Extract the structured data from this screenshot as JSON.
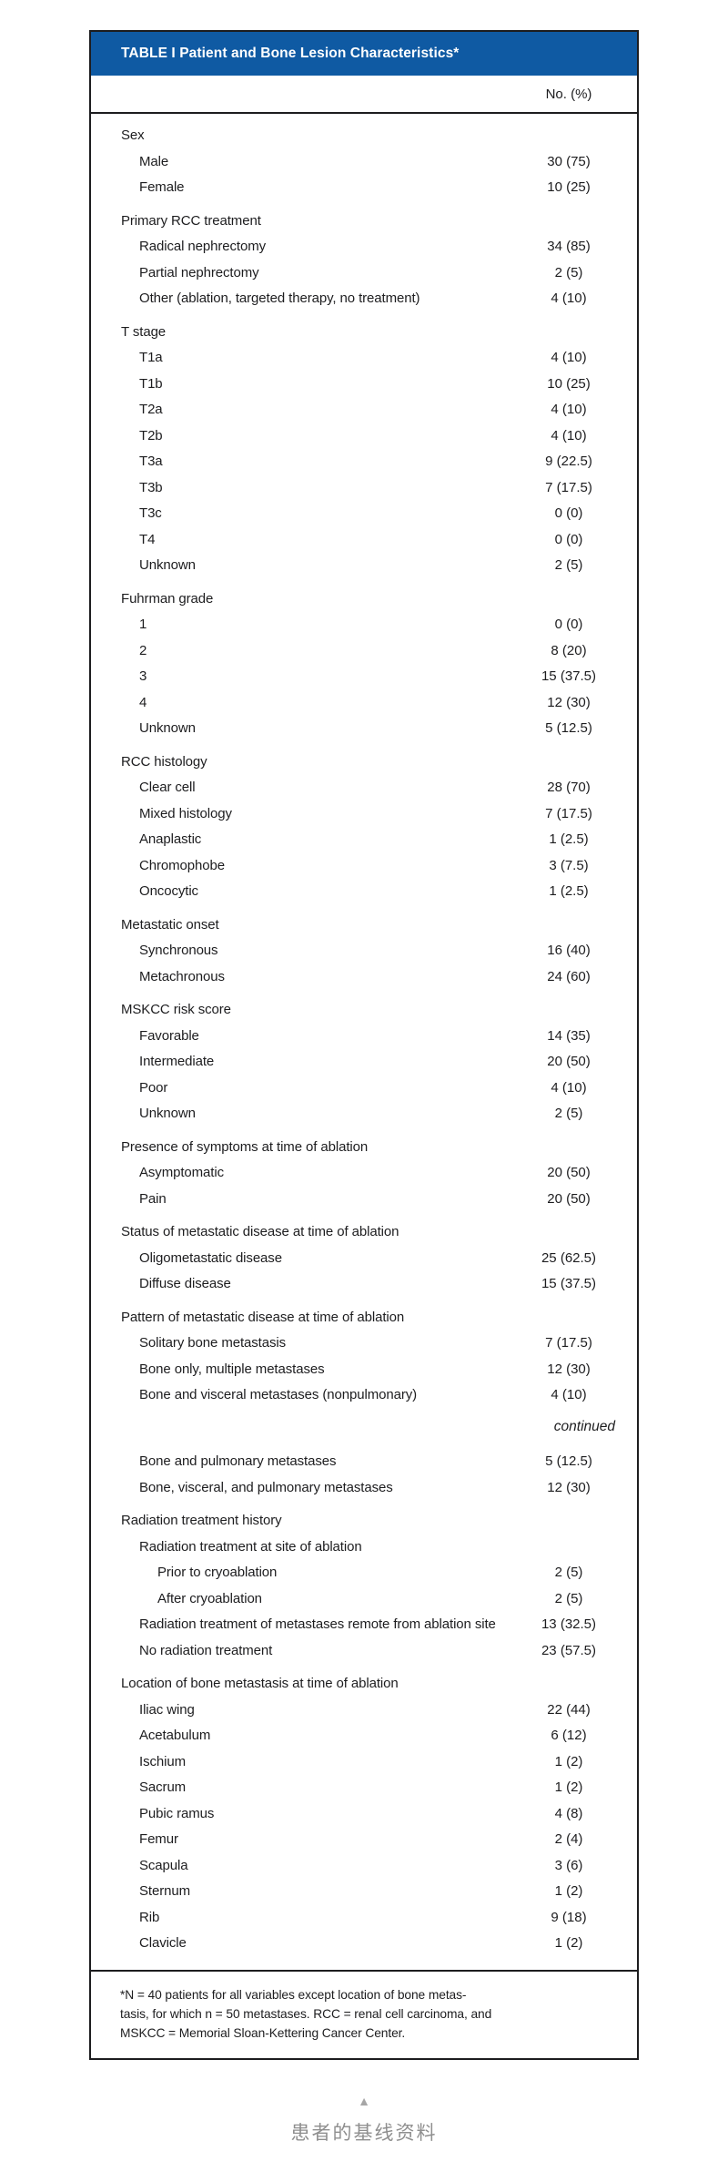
{
  "table": {
    "title": "TABLE I Patient and Bone Lesion Characteristics*",
    "value_header": "No. (%)",
    "continued_label": "continued",
    "sections": [
      {
        "header": "Sex",
        "rows": [
          {
            "label": "Male",
            "value": "30 (75)"
          },
          {
            "label": "Female",
            "value": "10 (25)"
          }
        ]
      },
      {
        "header": "Primary RCC treatment",
        "rows": [
          {
            "label": "Radical nephrectomy",
            "value": "34 (85)"
          },
          {
            "label": "Partial nephrectomy",
            "value": "2 (5)"
          },
          {
            "label": "Other (ablation, targeted therapy, no treatment)",
            "value": "4 (10)"
          }
        ]
      },
      {
        "header": "T stage",
        "rows": [
          {
            "label": "T1a",
            "value": "4 (10)"
          },
          {
            "label": "T1b",
            "value": "10 (25)"
          },
          {
            "label": "T2a",
            "value": "4 (10)"
          },
          {
            "label": "T2b",
            "value": "4 (10)"
          },
          {
            "label": "T3a",
            "value": "9 (22.5)"
          },
          {
            "label": "T3b",
            "value": "7 (17.5)"
          },
          {
            "label": "T3c",
            "value": "0 (0)"
          },
          {
            "label": "T4",
            "value": "0 (0)"
          },
          {
            "label": "Unknown",
            "value": "2 (5)"
          }
        ]
      },
      {
        "header": "Fuhrman grade",
        "rows": [
          {
            "label": "1",
            "value": "0 (0)"
          },
          {
            "label": "2",
            "value": "8 (20)"
          },
          {
            "label": "3",
            "value": "15 (37.5)"
          },
          {
            "label": "4",
            "value": "12 (30)"
          },
          {
            "label": "Unknown",
            "value": "5 (12.5)"
          }
        ]
      },
      {
        "header": "RCC histology",
        "rows": [
          {
            "label": "Clear cell",
            "value": "28 (70)"
          },
          {
            "label": "Mixed histology",
            "value": "7 (17.5)"
          },
          {
            "label": "Anaplastic",
            "value": "1 (2.5)"
          },
          {
            "label": "Chromophobe",
            "value": "3 (7.5)"
          },
          {
            "label": "Oncocytic",
            "value": "1 (2.5)"
          }
        ]
      },
      {
        "header": "Metastatic onset",
        "rows": [
          {
            "label": "Synchronous",
            "value": "16 (40)"
          },
          {
            "label": "Metachronous",
            "value": "24 (60)"
          }
        ]
      },
      {
        "header": "MSKCC risk score",
        "rows": [
          {
            "label": "Favorable",
            "value": "14 (35)"
          },
          {
            "label": "Intermediate",
            "value": "20 (50)"
          },
          {
            "label": "Poor",
            "value": "4 (10)"
          },
          {
            "label": "Unknown",
            "value": "2 (5)"
          }
        ]
      },
      {
        "header": "Presence of symptoms at time of ablation",
        "rows": [
          {
            "label": "Asymptomatic",
            "value": "20 (50)"
          },
          {
            "label": "Pain",
            "value": "20 (50)"
          }
        ]
      },
      {
        "header": "Status of metastatic disease at time of ablation",
        "rows": [
          {
            "label": "Oligometastatic disease",
            "value": "25 (62.5)"
          },
          {
            "label": "Diffuse disease",
            "value": "15 (37.5)"
          }
        ]
      },
      {
        "header": "Pattern of metastatic disease at time of ablation",
        "rows": [
          {
            "label": "Solitary bone metastasis",
            "value": "7 (17.5)"
          },
          {
            "label": "Bone only, multiple metastases",
            "value": "12 (30)"
          },
          {
            "label": "Bone and visceral metastases (nonpulmonary)",
            "value": "4 (10)"
          },
          {
            "type": "continued"
          },
          {
            "label": "Bone and pulmonary metastases",
            "value": "5 (12.5)"
          },
          {
            "label": "Bone, visceral, and pulmonary metastases",
            "value": "12 (30)"
          }
        ]
      },
      {
        "header": "Radiation treatment history",
        "rows": [
          {
            "label": "Radiation treatment at site of ablation",
            "value": ""
          },
          {
            "label": "Prior to cryoablation",
            "value": "2 (5)",
            "indent": 2
          },
          {
            "label": "After cryoablation",
            "value": "2 (5)",
            "indent": 2
          },
          {
            "label": "Radiation treatment of metastases remote from ablation site",
            "value": "13 (32.5)"
          },
          {
            "label": "No radiation treatment",
            "value": "23 (57.5)"
          }
        ]
      },
      {
        "header": "Location of bone metastasis at time of ablation",
        "rows": [
          {
            "label": "Iliac wing",
            "value": "22 (44)"
          },
          {
            "label": "Acetabulum",
            "value": "6 (12)"
          },
          {
            "label": "Ischium",
            "value": "1 (2)"
          },
          {
            "label": "Sacrum",
            "value": "1 (2)"
          },
          {
            "label": "Pubic ramus",
            "value": "4 (8)"
          },
          {
            "label": "Femur",
            "value": "2 (4)"
          },
          {
            "label": "Scapula",
            "value": "3 (6)"
          },
          {
            "label": "Sternum",
            "value": "1 (2)"
          },
          {
            "label": "Rib",
            "value": "9 (18)"
          },
          {
            "label": "Clavicle",
            "value": "1 (2)"
          }
        ]
      }
    ],
    "footnote_lines": [
      "*N = 40 patients for all variables except location of bone metas-",
      "tasis, for which n = 50 metastases. RCC = renal cell carcinoma, and",
      "MSKCC = Memorial Sloan-Kettering Cancer Center."
    ]
  },
  "caption": {
    "marker": "▲",
    "text": "患者的基线资料"
  },
  "colors": {
    "header_bg": "#0f5aa3",
    "header_text": "#ffffff",
    "border": "#1d1d1f",
    "body_text": "#1d1d1f",
    "caption_gray": "#8f8f8f",
    "marker_gray": "#a6a6a6"
  }
}
